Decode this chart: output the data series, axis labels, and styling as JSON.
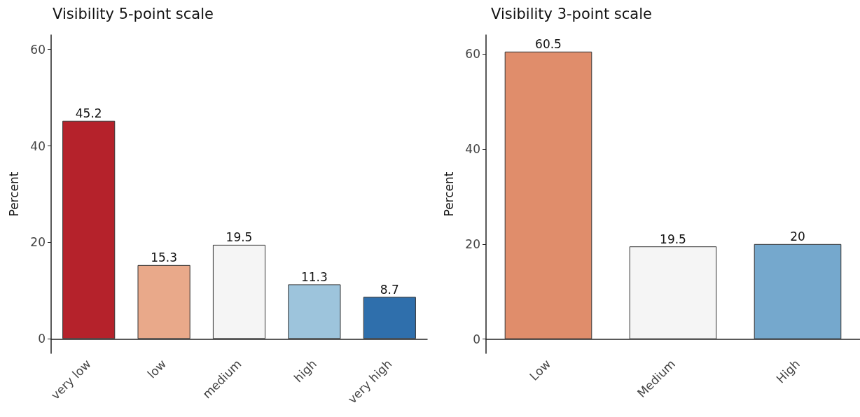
{
  "chart_data": [
    {
      "type": "bar",
      "title": "Visibility 5-point scale",
      "ylabel": "Percent",
      "categories": [
        "very low",
        "low",
        "medium",
        "high",
        "very high"
      ],
      "values": [
        45.2,
        15.3,
        19.5,
        11.3,
        8.7
      ],
      "colors": [
        "#b5222b",
        "#e9a98a",
        "#f5f5f5",
        "#9dc4dc",
        "#2f6fac"
      ],
      "ylim": [
        -3,
        63
      ],
      "yticks": [
        0,
        20,
        40,
        60
      ],
      "data_labels": true,
      "grid": false
    },
    {
      "type": "bar",
      "title": "Visibility 3-point scale",
      "ylabel": "Percent",
      "categories": [
        "Low",
        "Medium",
        "High"
      ],
      "values": [
        60.5,
        19.5,
        20
      ],
      "colors": [
        "#e08d6b",
        "#f5f5f5",
        "#75a8cd"
      ],
      "ylim": [
        -3,
        64
      ],
      "yticks": [
        0,
        20,
        40,
        60
      ],
      "data_labels": true,
      "grid": false
    }
  ]
}
